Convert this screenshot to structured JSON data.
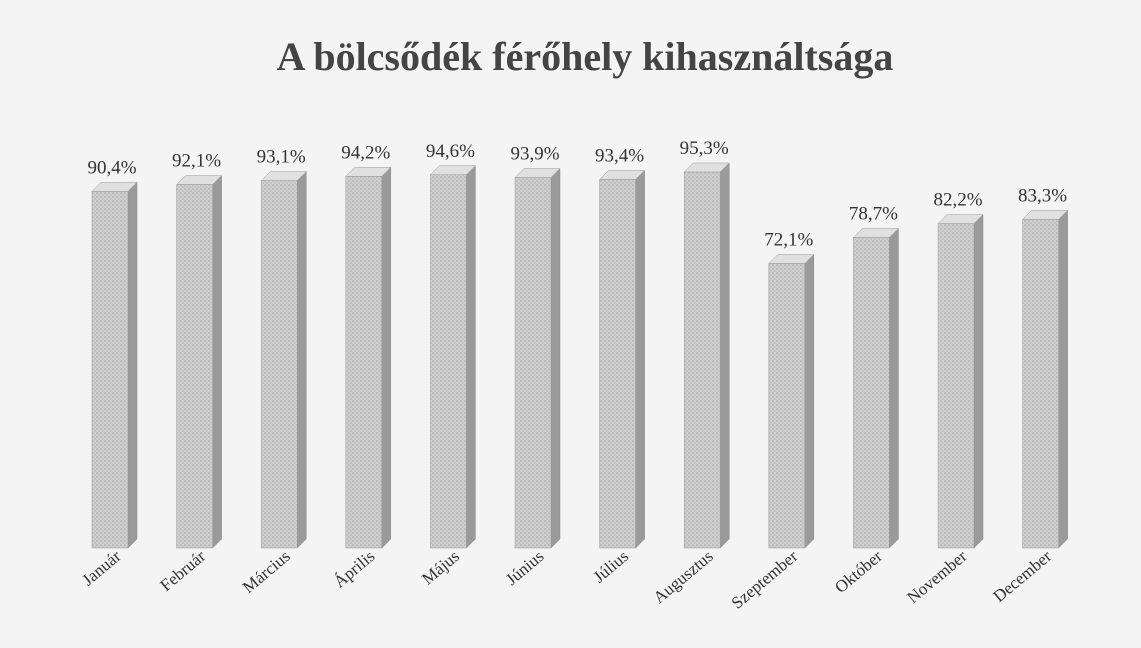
{
  "chart_data": {
    "type": "bar3d",
    "title": "A bölcsődék férőhely kihasználtsága",
    "categories": [
      "Január",
      "Február",
      "Március",
      "Április",
      "Május",
      "Június",
      "Július",
      "Augusztus",
      "Szeptember",
      "Október",
      "November",
      "December"
    ],
    "values": [
      90.4,
      92.1,
      93.1,
      94.2,
      94.6,
      93.9,
      93.4,
      95.3,
      72.1,
      78.7,
      82.2,
      83.3
    ],
    "value_labels": [
      "90,4%",
      "92,1%",
      "93,1%",
      "94,2%",
      "94,6%",
      "93,9%",
      "93,4%",
      "95,3%",
      "72,1%",
      "78,7%",
      "82,2%",
      "83,3%"
    ],
    "color": "#c8c8c8"
  }
}
